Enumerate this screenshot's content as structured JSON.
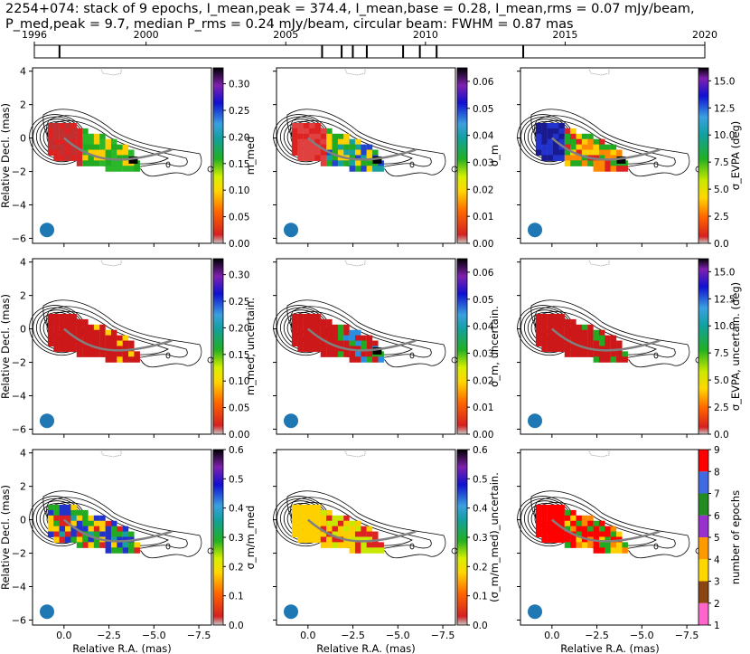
{
  "title": {
    "line1": "2254+074: stack of 9 epochs, I_mean,peak = 374.4, I_mean,base = 0.28, I_mean,rms = 0.07 mJy/beam,",
    "line2": "P_med,peak = 9.7, median P_rms = 0.24 mJy/beam, circular beam: FWHM = 0.87 mas"
  },
  "timeline": {
    "xlim": [
      1996,
      2020
    ],
    "tick_labels": [
      "1996",
      "2000",
      "2005",
      "2010",
      "2015",
      "2020"
    ],
    "tick_values": [
      1996,
      2000,
      2005,
      2010,
      2015,
      2020
    ],
    "epochs": [
      1996.9,
      2006.3,
      2007.0,
      2007.4,
      2007.9,
      2009.2,
      2009.8,
      2010.4,
      2013.5
    ]
  },
  "axes": {
    "xlabel": "Relative R.A. (mas)",
    "ylabel": "Relative Decl. (mas)",
    "x_ticks": [
      "0.0",
      "−2.5",
      "−5.0",
      "−7.5"
    ],
    "y_ticks": [
      "4",
      "2",
      "0",
      "−2",
      "−4",
      "−6"
    ]
  },
  "colors": {
    "beam": "#1f77b4",
    "ridge": "#808080",
    "contour": "#000000"
  },
  "chart_data": [
    {
      "type": "heatmap",
      "panel": "m_med",
      "cbar_label": "m_med",
      "clim": [
        0,
        0.33
      ],
      "cbar_ticks": [
        "0.00",
        "0.05",
        "0.10",
        "0.15",
        "0.20",
        "0.25",
        "0.30"
      ]
    },
    {
      "type": "heatmap",
      "panel": "sigma_m",
      "cbar_label": "σ_m",
      "clim": [
        0,
        0.065
      ],
      "cbar_ticks": [
        "0.00",
        "0.01",
        "0.02",
        "0.03",
        "0.04",
        "0.05",
        "0.06"
      ]
    },
    {
      "type": "heatmap",
      "panel": "sigma_EVPA",
      "cbar_label": "σ_EVPA (deg)",
      "clim": [
        0,
        16.2
      ],
      "cbar_ticks": [
        "0.0",
        "2.5",
        "5.0",
        "7.5",
        "10.0",
        "12.5",
        "15.0"
      ]
    },
    {
      "type": "heatmap",
      "panel": "m_med_uncertain",
      "cbar_label": "m_med, uncertain.",
      "clim": [
        0,
        0.33
      ],
      "cbar_ticks": [
        "0.00",
        "0.05",
        "0.10",
        "0.15",
        "0.20",
        "0.25",
        "0.30"
      ]
    },
    {
      "type": "heatmap",
      "panel": "sigma_m_uncertain",
      "cbar_label": "σ_m, uncertain.",
      "clim": [
        0,
        0.065
      ],
      "cbar_ticks": [
        "0.00",
        "0.01",
        "0.02",
        "0.03",
        "0.04",
        "0.05",
        "0.06"
      ]
    },
    {
      "type": "heatmap",
      "panel": "sigma_EVPA_uncertain",
      "cbar_label": "σ_EVPA, uncertain. (deg)",
      "clim": [
        0,
        16.2
      ],
      "cbar_ticks": [
        "0.0",
        "2.5",
        "5.0",
        "7.5",
        "10.0",
        "12.5",
        "15.0"
      ]
    },
    {
      "type": "heatmap",
      "panel": "sigma_m_over_m_med",
      "cbar_label": "σ_m/m_med",
      "clim": [
        0,
        0.6
      ],
      "cbar_ticks": [
        "0.0",
        "0.1",
        "0.2",
        "0.3",
        "0.4",
        "0.5",
        "0.6"
      ]
    },
    {
      "type": "heatmap",
      "panel": "sigma_m_over_m_med_uncertain",
      "cbar_label": "(σ_m/m_med)_uncertain.",
      "clim": [
        0,
        0.6
      ],
      "cbar_ticks": [
        "0.0",
        "0.1",
        "0.2",
        "0.3",
        "0.4",
        "0.5",
        "0.6"
      ]
    },
    {
      "type": "heatmap",
      "panel": "number_of_epochs",
      "cbar_label": "number of epochs",
      "clim": [
        1,
        9
      ],
      "cbar_ticks": [
        "1",
        "2",
        "3",
        "4",
        "5",
        "6",
        "7",
        "8",
        "9"
      ]
    }
  ]
}
